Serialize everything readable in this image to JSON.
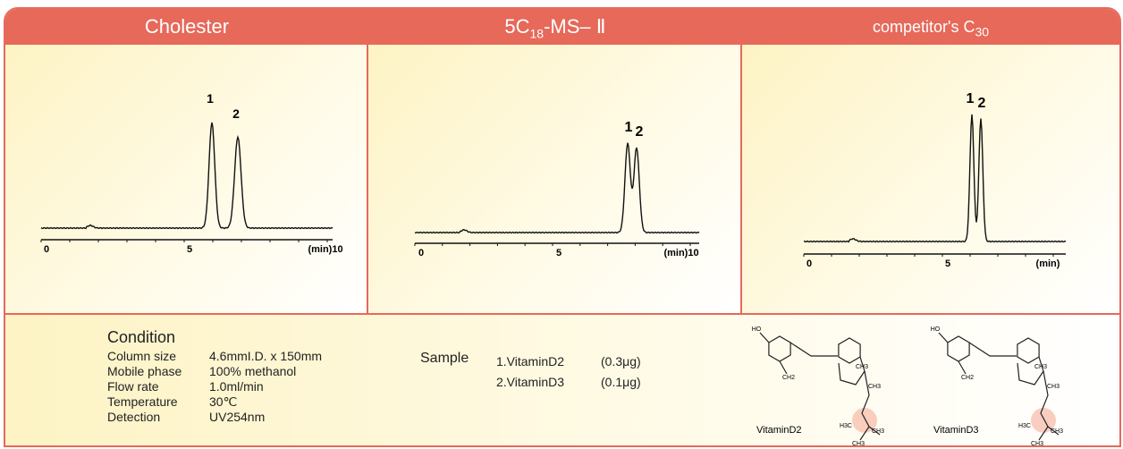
{
  "headers": [
    {
      "text": "Cholester"
    },
    {
      "text": "5C",
      "sub": "18",
      "rest": "-MS– Ⅱ"
    },
    {
      "text": "competitor's C",
      "sub": "30"
    }
  ],
  "panels": [
    {
      "peaks": [
        "1",
        "2"
      ],
      "axis": [
        "0",
        "5",
        "(min)10"
      ]
    },
    {
      "peaks": [
        "1",
        "2"
      ],
      "axis": [
        "0",
        "5",
        "(min)10"
      ]
    },
    {
      "peaks": [
        "1",
        "2"
      ],
      "axis": [
        "0",
        "5",
        "(min)"
      ]
    }
  ],
  "condition": {
    "title": "Condition",
    "rows": [
      [
        "Column size",
        "4.6mmI.D. x 150mm"
      ],
      [
        "Mobile phase",
        "100% methanol"
      ],
      [
        "Flow rate",
        "1.0ml/min"
      ],
      [
        "Temperature",
        "30℃"
      ],
      [
        "Detection",
        "UV254nm"
      ]
    ]
  },
  "sample": {
    "label": "Sample",
    "rows": [
      [
        "1.VitaminD2",
        "(0.3μg)"
      ],
      [
        "2.VitaminD3",
        "(0.1μg)"
      ]
    ]
  },
  "structures": [
    {
      "name": "VitaminD2",
      "atoms": [
        "HO",
        "CH2",
        "CH3",
        "CH3",
        "H3C",
        "CH3",
        "CH3"
      ]
    },
    {
      "name": "VitaminD3",
      "atoms": [
        "HO",
        "CH2",
        "CH3",
        "CH3",
        "H3C",
        "CH3",
        "CH3"
      ]
    }
  ]
}
